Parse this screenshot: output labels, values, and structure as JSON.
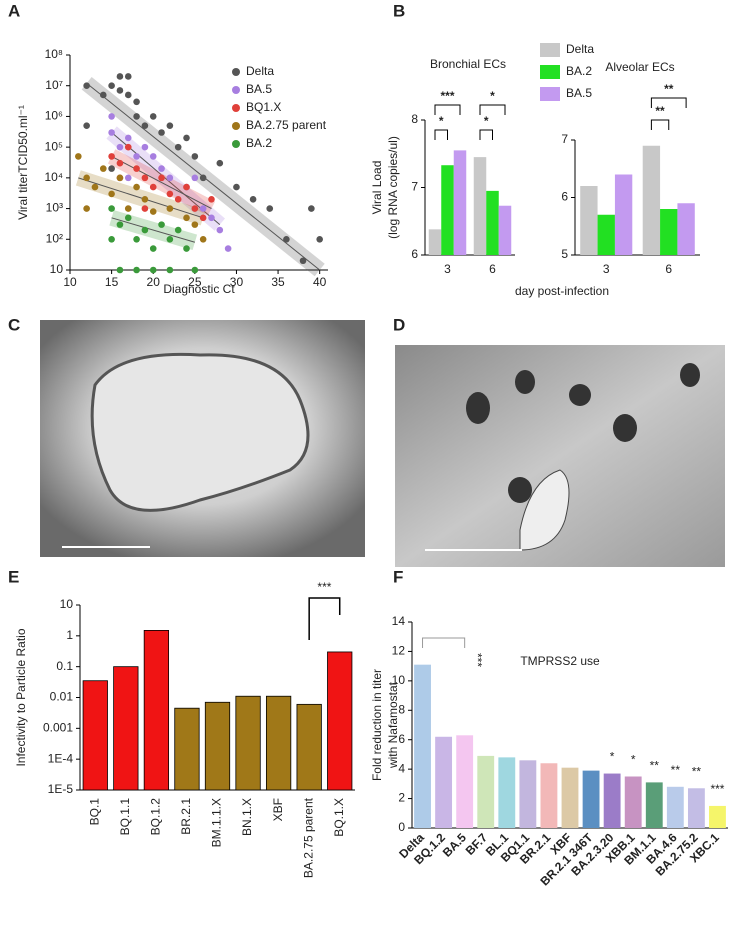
{
  "chart_data": [
    {
      "type": "scatter",
      "panel": "A",
      "ylabel": "Viral titerTCID50.ml⁻¹",
      "xlabel": "Diagnostic Ct",
      "xlim": [
        10,
        41
      ],
      "xticks": [
        10,
        15,
        20,
        25,
        30,
        35,
        40
      ],
      "yscale": "log",
      "ylim": [
        10,
        100000000
      ],
      "yticks": [
        10,
        {
          "value": 100,
          "label": "10²"
        },
        {
          "value": 1000,
          "label": "10³"
        },
        {
          "value": 10000,
          "label": "10⁴"
        },
        {
          "value": 100000,
          "label": "10⁵"
        },
        {
          "value": 1000000,
          "label": "10⁶"
        },
        {
          "value": 10000000,
          "label": "10⁷"
        },
        {
          "value": 100000000,
          "label": "10⁸"
        }
      ],
      "series": [
        {
          "name": "Delta",
          "color": "#555555",
          "x": [
            12,
            14,
            15,
            16,
            16,
            17,
            17,
            18,
            18,
            19,
            20,
            21,
            22,
            23,
            24,
            25,
            26,
            28,
            30,
            32,
            34,
            36,
            38,
            39,
            40,
            15,
            12
          ],
          "y": [
            10000000,
            5000000,
            10000000,
            20000000,
            7000000,
            20000000,
            5000000,
            3000000,
            1000000,
            500000,
            1000000,
            300000,
            500000,
            100000,
            200000,
            50000,
            10000,
            30000,
            5000,
            2000,
            1000,
            100,
            20,
            1000,
            100,
            20000,
            500000
          ],
          "fit_x": [
            12,
            40
          ],
          "fit_y": [
            12000000,
            10
          ]
        },
        {
          "name": "BA.5",
          "color": "#a77ee0",
          "x": [
            15,
            16,
            17,
            18,
            19,
            20,
            21,
            22,
            24,
            25,
            26,
            27,
            28,
            29,
            15,
            17
          ],
          "y": [
            300000,
            100000,
            200000,
            50000,
            100000,
            50000,
            20000,
            10000,
            5000,
            10000,
            1000,
            500,
            200,
            50,
            1000000,
            10000
          ],
          "fit_x": [
            15,
            28
          ],
          "fit_y": [
            300000,
            300
          ]
        },
        {
          "name": "BQ1.X",
          "color": "#e0403a",
          "x": [
            15,
            16,
            17,
            18,
            19,
            20,
            21,
            22,
            23,
            24,
            25,
            26,
            27,
            19,
            16
          ],
          "y": [
            50000,
            30000,
            100000,
            20000,
            10000,
            5000,
            10000,
            3000,
            2000,
            5000,
            1000,
            500,
            2000,
            1000,
            10000
          ],
          "fit_x": [
            15,
            27
          ],
          "fit_y": [
            50000,
            1000
          ]
        },
        {
          "name": "BA.2.75 parent",
          "color": "#a0761a",
          "x": [
            11,
            12,
            13,
            14,
            15,
            16,
            17,
            18,
            19,
            20,
            22,
            24,
            25,
            26,
            12
          ],
          "y": [
            50000,
            10000,
            5000,
            20000,
            3000,
            10000,
            1000,
            5000,
            2000,
            800,
            1000,
            500,
            300,
            100,
            1000
          ],
          "fit_x": [
            11,
            26
          ],
          "fit_y": [
            10000,
            500
          ]
        },
        {
          "name": "BA.2",
          "color": "#3a9a3a",
          "x": [
            15,
            16,
            17,
            18,
            19,
            20,
            21,
            22,
            23,
            24,
            16,
            18,
            20,
            22,
            25,
            15
          ],
          "y": [
            1000,
            300,
            500,
            100,
            200,
            50,
            300,
            100,
            200,
            50,
            10,
            10,
            10,
            10,
            10,
            100
          ],
          "fit_x": [
            15,
            25
          ],
          "fit_y": [
            500,
            80
          ]
        }
      ]
    },
    {
      "type": "grouped-bar",
      "panel": "B",
      "title": "Bronchial ECs",
      "ylabel": [
        "Viral Load",
        "(log RNA copies/ul)"
      ],
      "xlabel": "day post-infection",
      "categories": [
        "3",
        "6"
      ],
      "ylim": [
        6,
        8
      ],
      "yticks": [
        6,
        7,
        8
      ],
      "series": [
        {
          "name": "Delta",
          "color": "#c8c8c8",
          "values": [
            6.38,
            7.45
          ]
        },
        {
          "name": "BA.2",
          "color": "#22e022",
          "values": [
            7.33,
            6.95
          ]
        },
        {
          "name": "BA.5",
          "color": "#c39af0",
          "values": [
            7.55,
            6.73
          ]
        }
      ],
      "annotations": [
        "*",
        "***",
        "*",
        "*"
      ]
    },
    {
      "type": "grouped-bar",
      "title": "Alveolar ECs",
      "categories": [
        "3",
        "6"
      ],
      "ylim": [
        5,
        7
      ],
      "yticks": [
        5,
        6,
        7
      ],
      "series": [
        {
          "color": "#c8c8c8",
          "values": [
            6.2,
            6.9
          ]
        },
        {
          "color": "#22e022",
          "values": [
            5.7,
            5.8
          ]
        },
        {
          "color": "#c39af0",
          "values": [
            6.4,
            5.9
          ]
        }
      ],
      "annotations": [
        "**",
        "**"
      ]
    },
    {
      "type": "bar",
      "panel": "E",
      "ylabel": "Infectivity to Particle Ratio",
      "categories": [
        "BQ.1",
        "BQ.1.1",
        "BQ.1.2",
        "BR.2.1",
        "BM.1.1.X",
        "BN.1.X",
        "XBF",
        "BA.2.75 parent",
        "BQ.1.X"
      ],
      "values": [
        0.035,
        0.1,
        1.5,
        0.0045,
        0.007,
        0.011,
        0.011,
        0.006,
        0.3
      ],
      "colors": [
        "#f01414",
        "#f01414",
        "#f01414",
        "#a07818",
        "#a07818",
        "#a07818",
        "#a07818",
        "#a07818",
        "#f01414"
      ],
      "yscale": "log",
      "ylim": [
        1e-05,
        10
      ],
      "yticks": [
        {
          "value": 1e-05,
          "label": "1E-5"
        },
        {
          "value": 0.0001,
          "label": "1E-4"
        },
        0.001,
        0.01,
        0.1,
        1,
        10
      ],
      "annotations": [
        "***"
      ]
    },
    {
      "type": "bar",
      "panel": "F",
      "title": "TMPRSS2 use",
      "ylabel": [
        "Fold reduction in titer",
        "with Nafamostat"
      ],
      "categories": [
        "Delta",
        "BQ.1.2",
        "BA.5",
        "BF.7",
        "BL.1",
        "BQ1.1",
        "BR.2.1",
        "XBF",
        "BR.2.1 346T",
        "BA.2.3.20",
        "XBB.1",
        "BM.1.1",
        "BA.4.6",
        "BA.2.75.2",
        "XBC.1"
      ],
      "values": [
        11.1,
        6.2,
        6.3,
        4.9,
        4.8,
        4.6,
        4.4,
        4.1,
        3.9,
        3.7,
        3.5,
        3.1,
        2.8,
        2.7,
        1.5
      ],
      "colors": [
        "#aecbe8",
        "#c9b6e6",
        "#f4c6f0",
        "#cfe6b8",
        "#9fd7e0",
        "#c2b6de",
        "#f2b8b8",
        "#dcc9a6",
        "#5b8fc2",
        "#9b7cc8",
        "#c793c2",
        "#5a9e78",
        "#b9cbea",
        "#c3bde5",
        "#f5f56a"
      ],
      "significance": [
        null,
        null,
        null,
        null,
        null,
        null,
        null,
        null,
        null,
        "*",
        "*",
        "**",
        "**",
        "**",
        "***"
      ],
      "ylim": [
        0,
        14
      ],
      "yticks": [
        0,
        2,
        4,
        6,
        8,
        10,
        12,
        14
      ],
      "annotations": [
        "***"
      ]
    }
  ],
  "images": [
    {
      "panel": "C"
    },
    {
      "panel": "D"
    }
  ]
}
